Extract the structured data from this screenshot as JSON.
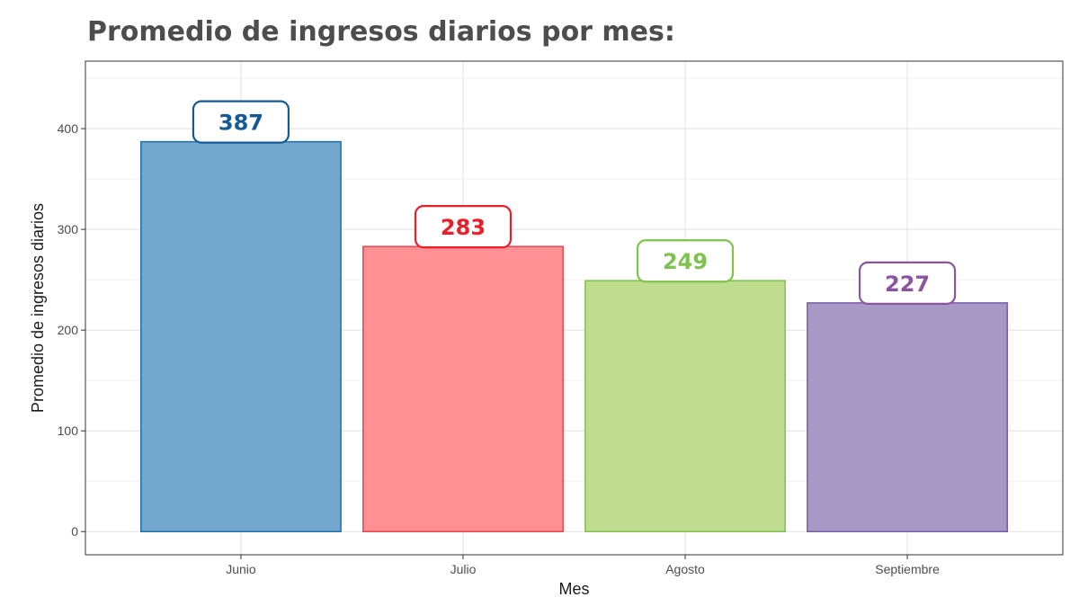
{
  "chart_data": {
    "type": "bar",
    "title": "Promedio de ingresos diarios por mes:",
    "xlabel": "Mes",
    "ylabel": "Promedio de ingresos diarios",
    "categories": [
      "Junio",
      "Julio",
      "Agosto",
      "Septiembre"
    ],
    "values": [
      387,
      283,
      249,
      227
    ],
    "data_labels": [
      "387",
      "283",
      "249",
      "227"
    ],
    "yticks": [
      0,
      100,
      200,
      300,
      400
    ],
    "ytick_labels": [
      "0",
      "100",
      "200",
      "300",
      "400"
    ],
    "ylim": [
      -23,
      467
    ],
    "grid": true,
    "legend": "none",
    "colors": {
      "fill": [
        "#74a8cf",
        "#ff9195",
        "#c0dc8e",
        "#a898c6"
      ],
      "stroke": [
        "#1f6fa8",
        "#e8444f",
        "#7fc24e",
        "#7b5aa6"
      ],
      "label": [
        "#155a96",
        "#e8202a",
        "#7fc24e",
        "#8b559e"
      ]
    }
  }
}
